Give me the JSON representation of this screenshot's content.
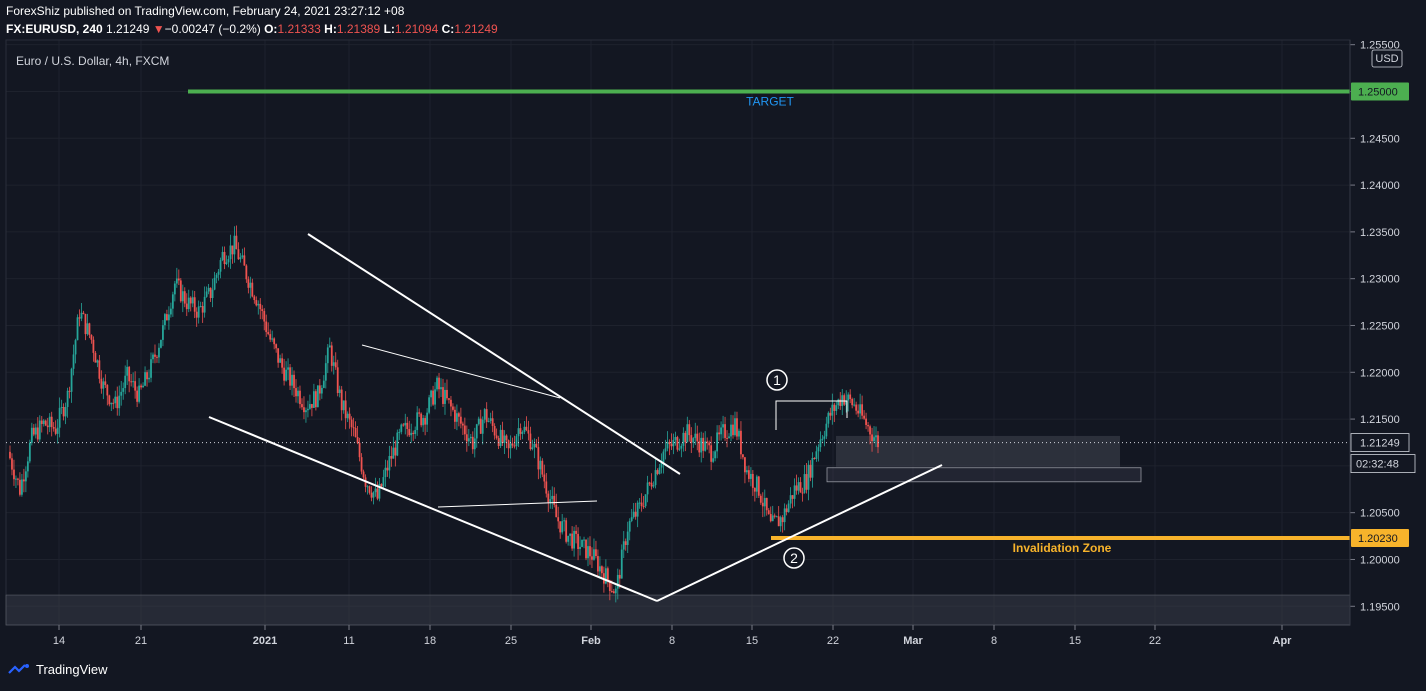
{
  "header": {
    "published": "ForexShiz published on TradingView.com, February 24, 2021 23:27:12 +08",
    "symbol": "FX:EURUSD, 240",
    "last": "1.21249",
    "change_arrow": "▼",
    "change": "−0.00247 (−0.2%)",
    "open_label": "O:",
    "open": "1.21333",
    "high_label": "H:",
    "high": "1.21389",
    "low_label": "L:",
    "low": "1.21094",
    "close_label": "C:",
    "close": "1.21249"
  },
  "chart_title": "Euro / U.S. Dollar, 4h, FXCM",
  "currency_button": "USD",
  "footer": {
    "brand": "TradingView",
    "logo_icon": "tradingview-logo-icon"
  },
  "colors": {
    "background": "#131722",
    "up": "#26a69a",
    "down": "#ef5350",
    "target": "#4caf50",
    "invalidation": "#f7b32b",
    "grid": "#1e222d"
  },
  "chart_data": {
    "type": "candlestick",
    "ylim": [
      1.193,
      1.2555
    ],
    "x_ticks": [
      "14",
      "21",
      "2021",
      "11",
      "18",
      "25",
      "Feb",
      "8",
      "15",
      "22",
      "Mar",
      "8",
      "15",
      "22",
      "Apr"
    ],
    "y_ticks": [
      "1.25500",
      "1.25000",
      "1.24500",
      "1.24000",
      "1.23500",
      "1.23000",
      "1.22500",
      "1.22000",
      "1.21500",
      "1.21000",
      "1.20500",
      "1.20000",
      "1.19500"
    ],
    "current_price": "1.21249",
    "countdown": "02:32:48",
    "target": {
      "price": 1.25,
      "label": "1.25000",
      "text": "TARGET"
    },
    "invalidation": {
      "price": 1.2023,
      "label": "1.20230",
      "text": "Invalidation Zone"
    },
    "markers": [
      {
        "id": "1",
        "label": "1"
      },
      {
        "id": "2",
        "label": "2"
      }
    ],
    "close_path": [
      [
        0,
        1.2115
      ],
      [
        6,
        1.2075
      ],
      [
        12,
        1.213
      ],
      [
        18,
        1.2145
      ],
      [
        24,
        1.214
      ],
      [
        30,
        1.2175
      ],
      [
        36,
        1.2265
      ],
      [
        42,
        1.2235
      ],
      [
        48,
        1.2185
      ],
      [
        54,
        1.2165
      ],
      [
        60,
        1.2195
      ],
      [
        66,
        1.2175
      ],
      [
        72,
        1.2205
      ],
      [
        78,
        1.2245
      ],
      [
        84,
        1.2295
      ],
      [
        90,
        1.2275
      ],
      [
        96,
        1.2265
      ],
      [
        102,
        1.2285
      ],
      [
        108,
        1.2325
      ],
      [
        114,
        1.2335
      ],
      [
        120,
        1.2305
      ],
      [
        126,
        1.2275
      ],
      [
        132,
        1.2235
      ],
      [
        138,
        1.2205
      ],
      [
        144,
        1.2185
      ],
      [
        150,
        1.2165
      ],
      [
        156,
        1.2175
      ],
      [
        162,
        1.2225
      ],
      [
        168,
        1.2165
      ],
      [
        174,
        1.2135
      ],
      [
        180,
        1.2085
      ],
      [
        186,
        1.2065
      ],
      [
        192,
        1.2105
      ],
      [
        198,
        1.2135
      ],
      [
        204,
        1.2145
      ],
      [
        210,
        1.2155
      ],
      [
        216,
        1.2185
      ],
      [
        222,
        1.2165
      ],
      [
        228,
        1.2145
      ],
      [
        234,
        1.2125
      ],
      [
        240,
        1.2155
      ],
      [
        246,
        1.2135
      ],
      [
        252,
        1.2115
      ],
      [
        258,
        1.2145
      ],
      [
        264,
        1.2125
      ],
      [
        270,
        1.2085
      ],
      [
        276,
        1.2045
      ],
      [
        282,
        1.2025
      ],
      [
        288,
        1.2015
      ],
      [
        294,
        1.2005
      ],
      [
        300,
        1.1985
      ],
      [
        306,
        1.1965
      ],
      [
        312,
        1.2035
      ],
      [
        318,
        1.2055
      ],
      [
        324,
        1.2085
      ],
      [
        330,
        1.2115
      ],
      [
        336,
        1.2125
      ],
      [
        342,
        1.2135
      ],
      [
        348,
        1.2125
      ],
      [
        354,
        1.2115
      ],
      [
        360,
        1.2135
      ],
      [
        366,
        1.2145
      ],
      [
        372,
        1.2095
      ],
      [
        378,
        1.2075
      ],
      [
        384,
        1.2035
      ],
      [
        390,
        1.2045
      ],
      [
        396,
        1.2075
      ],
      [
        402,
        1.2085
      ],
      [
        408,
        1.2125
      ],
      [
        414,
        1.2155
      ],
      [
        420,
        1.2175
      ],
      [
        426,
        1.2165
      ],
      [
        432,
        1.2145
      ],
      [
        438,
        1.2125
      ]
    ]
  }
}
